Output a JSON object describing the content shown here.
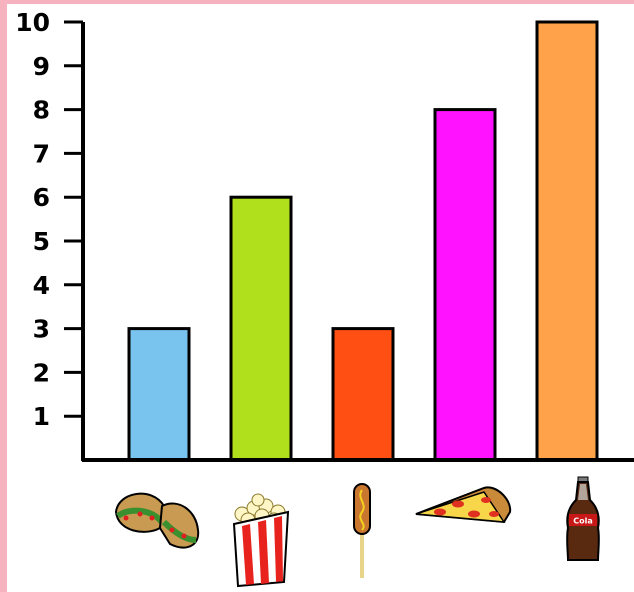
{
  "chart_data": {
    "type": "bar",
    "categories": [
      "tacos",
      "popcorn",
      "corn dog",
      "pizza",
      "soda"
    ],
    "values": [
      3,
      6,
      3,
      8,
      10
    ],
    "colors": [
      "#78c4ee",
      "#b0e01c",
      "#ff4f12",
      "#ff12ff",
      "#ffa24a"
    ],
    "category_icons": [
      "taco-icon",
      "popcorn-icon",
      "corn-dog-icon",
      "pizza-slice-icon",
      "soda-bottle-icon"
    ],
    "yticks": [
      "1",
      "2",
      "3",
      "4",
      "5",
      "6",
      "7",
      "8",
      "9",
      "10"
    ],
    "ylim": [
      0,
      10
    ],
    "grid": false,
    "legend": "none",
    "bottle_label": "Cola"
  }
}
